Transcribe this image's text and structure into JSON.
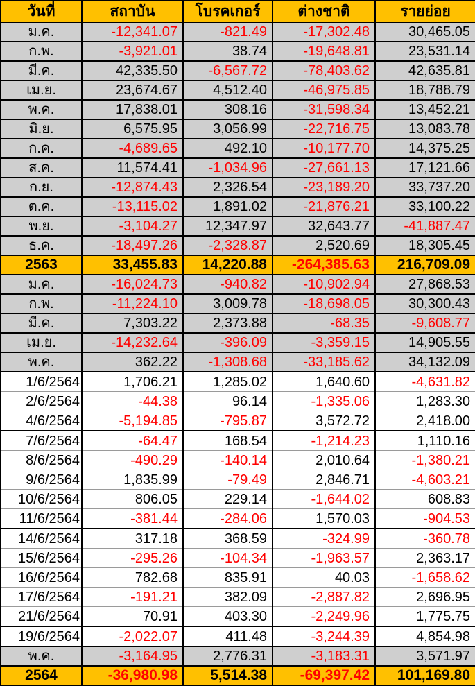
{
  "colors": {
    "header_bg": "#FFC000",
    "summary_bg": "#FFC000",
    "month_row_bg": "#CFCFCF",
    "negative_text": "#FF0000",
    "positive_text": "#000000",
    "grid_border": "#000000",
    "day_gridline": "#9A9A9A"
  },
  "chart_data": {
    "type": "table",
    "title": "",
    "columns": [
      "วันที่",
      "สถาบัน",
      "โบรคเกอร์",
      "ต่างชาติ",
      "รายย่อย"
    ],
    "rows": [
      {
        "label": "ม.ค.",
        "type": "month",
        "values": [
          "-12,341.07",
          "-821.49",
          "-17,302.48",
          "30,465.05"
        ]
      },
      {
        "label": "ก.พ.",
        "type": "month",
        "values": [
          "-3,921.01",
          "38.74",
          "-19,648.81",
          "23,531.14"
        ]
      },
      {
        "label": "มี.ค.",
        "type": "month",
        "values": [
          "42,335.50",
          "-6,567.72",
          "-78,403.62",
          "42,635.81"
        ]
      },
      {
        "label": "เม.ย.",
        "type": "month",
        "values": [
          "23,674.67",
          "4,512.40",
          "-46,975.85",
          "18,788.79"
        ]
      },
      {
        "label": "พ.ค.",
        "type": "month",
        "values": [
          "17,838.01",
          "308.16",
          "-31,598.34",
          "13,452.21"
        ]
      },
      {
        "label": "มิ.ย.",
        "type": "month",
        "values": [
          "6,575.95",
          "3,056.99",
          "-22,716.75",
          "13,083.78"
        ]
      },
      {
        "label": "ก.ค.",
        "type": "month",
        "values": [
          "-4,689.65",
          "492.10",
          "-10,177.70",
          "14,375.25"
        ]
      },
      {
        "label": "ส.ค.",
        "type": "month",
        "values": [
          "11,574.41",
          "-1,034.96",
          "-27,661.13",
          "17,121.66"
        ]
      },
      {
        "label": "ก.ย.",
        "type": "month",
        "values": [
          "-12,874.43",
          "2,326.54",
          "-23,189.20",
          "33,737.20"
        ]
      },
      {
        "label": "ต.ค.",
        "type": "month",
        "values": [
          "-13,115.02",
          "1,891.02",
          "-21,876.21",
          "33,100.22"
        ]
      },
      {
        "label": "พ.ย.",
        "type": "month",
        "values": [
          "-3,104.27",
          "12,347.97",
          "32,643.77",
          "-41,887.47"
        ]
      },
      {
        "label": "ธ.ค.",
        "type": "month",
        "values": [
          "-18,497.26",
          "-2,328.87",
          "2,520.69",
          "18,305.45"
        ]
      },
      {
        "label": "2563",
        "type": "summary",
        "values": [
          "33,455.83",
          "14,220.88",
          "-264,385.63",
          "216,709.09"
        ]
      },
      {
        "label": "ม.ค.",
        "type": "month",
        "values": [
          "-16,024.73",
          "-940.82",
          "-10,902.94",
          "27,868.53"
        ]
      },
      {
        "label": "ก.พ.",
        "type": "month",
        "values": [
          "-11,224.10",
          "3,009.78",
          "-18,698.05",
          "30,300.43"
        ]
      },
      {
        "label": "มี.ค.",
        "type": "month",
        "values": [
          "7,303.22",
          "2,373.88",
          "-68.35",
          "-9,608.77"
        ]
      },
      {
        "label": "เม.ย.",
        "type": "month",
        "values": [
          "-14,232.64",
          "-396.09",
          "-3,359.15",
          "14,905.55"
        ]
      },
      {
        "label": "พ.ค.",
        "type": "month",
        "values": [
          "362.22",
          "-1,308.68",
          "-33,185.62",
          "34,132.09"
        ]
      },
      {
        "label": "1/6/2564",
        "type": "day",
        "first_day": true,
        "values": [
          "1,706.21",
          "1,285.02",
          "1,640.60",
          "-4,631.82"
        ]
      },
      {
        "label": "2/6/2564",
        "type": "day",
        "values": [
          "-44.38",
          "96.14",
          "-1,335.06",
          "1,283.30"
        ]
      },
      {
        "label": "4/6/2564",
        "type": "day",
        "thick_bottom": true,
        "values": [
          "-5,194.85",
          "-795.87",
          "3,572.72",
          "2,418.00"
        ]
      },
      {
        "label": "7/6/2564",
        "type": "day",
        "values": [
          "-64.47",
          "168.54",
          "-1,214.23",
          "1,110.16"
        ]
      },
      {
        "label": "8/6/2564",
        "type": "day",
        "values": [
          "-490.29",
          "-140.14",
          "2,010.64",
          "-1,380.21"
        ]
      },
      {
        "label": "9/6/2564",
        "type": "day",
        "values": [
          "1,835.99",
          "-79.49",
          "2,846.71",
          "-4,603.21"
        ]
      },
      {
        "label": "10/6/2564",
        "type": "day",
        "values": [
          "806.05",
          "229.14",
          "-1,644.02",
          "608.83"
        ]
      },
      {
        "label": "11/6/2564",
        "type": "day",
        "thick_bottom": true,
        "values": [
          "-381.44",
          "-284.06",
          "1,570.03",
          "-904.53"
        ]
      },
      {
        "label": "14/6/2564",
        "type": "day",
        "values": [
          "317.18",
          "368.59",
          "-324.99",
          "-360.78"
        ]
      },
      {
        "label": "15/6/2564",
        "type": "day",
        "values": [
          "-295.26",
          "-104.34",
          "-1,963.57",
          "2,363.17"
        ]
      },
      {
        "label": "16/6/2564",
        "type": "day",
        "values": [
          "782.68",
          "835.91",
          "40.03",
          "-1,658.62"
        ]
      },
      {
        "label": "17/6/2564",
        "type": "day",
        "values": [
          "-191.21",
          "382.09",
          "-2,887.82",
          "2,696.95"
        ]
      },
      {
        "label": "21/6/2564",
        "type": "day",
        "thick_bottom": true,
        "values": [
          "70.91",
          "403.30",
          "-2,249.96",
          "1,775.75"
        ]
      },
      {
        "label": "19/6/2564",
        "type": "day",
        "thick_bottom": true,
        "values": [
          "-2,022.07",
          "411.48",
          "-3,244.39",
          "4,854.98"
        ]
      },
      {
        "label": "พ.ค.",
        "type": "month",
        "values": [
          "-3,164.95",
          "2,776.31",
          "-3,183.31",
          "3,571.97"
        ]
      },
      {
        "label": "2564",
        "type": "summary",
        "values": [
          "-36,980.98",
          "5,514.38",
          "-69,397.42",
          "101,169.80"
        ]
      }
    ]
  }
}
